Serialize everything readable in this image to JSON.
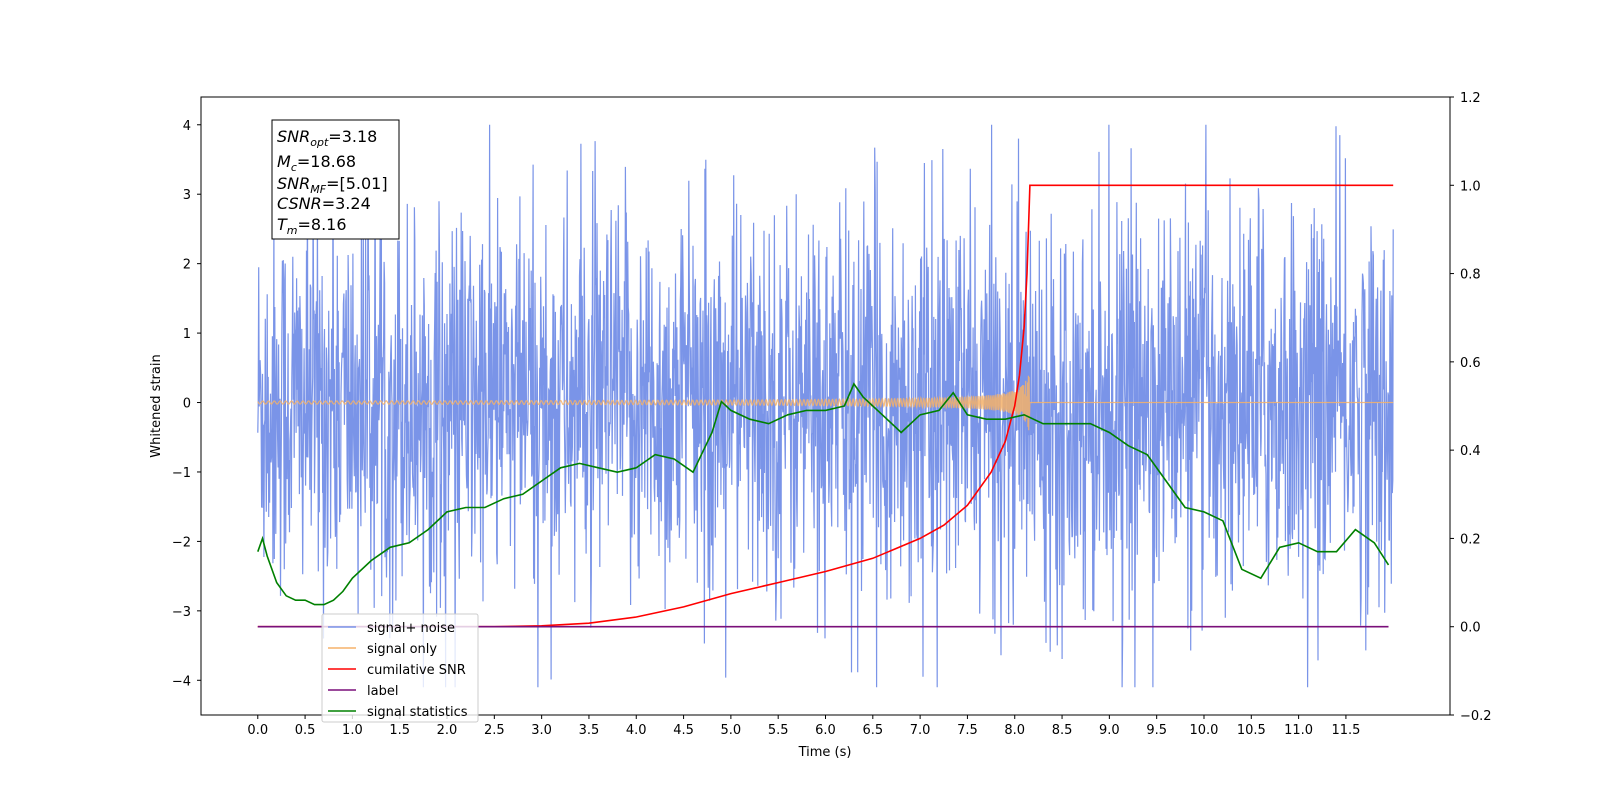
{
  "chart_data": {
    "type": "line",
    "xlabel": "Time (s)",
    "ylabel": "Whitened strain",
    "xlim": [
      -0.6,
      12.6
    ],
    "ylim": [
      -4.5,
      4.4
    ],
    "y2lim": [
      -0.2,
      1.2
    ],
    "grid": false,
    "legend_placement": "lower-left",
    "x_ticks": [
      "0.0",
      "0.5",
      "1.0",
      "1.5",
      "2.0",
      "2.5",
      "3.0",
      "3.5",
      "4.0",
      "4.5",
      "5.0",
      "5.5",
      "6.0",
      "6.5",
      "7.0",
      "7.5",
      "8.0",
      "8.5",
      "9.0",
      "9.5",
      "10.0",
      "10.5",
      "11.0",
      "11.5"
    ],
    "y_ticks": [
      "4",
      "3",
      "2",
      "1",
      "0",
      "−1",
      "−2",
      "−3",
      "−4"
    ],
    "y2_ticks": [
      "1.2",
      "1.0",
      "0.8",
      "0.6",
      "0.4",
      "0.2",
      "0.0",
      "−0.2"
    ],
    "annotation": {
      "snr_opt": "=3.18",
      "mc": "=18.68",
      "snr_mf": "=[5.01]",
      "csnr": "=3.24",
      "tm": "=8.16"
    },
    "series": [
      {
        "name": "signal+ noise",
        "color": "#7a94e8",
        "axis": "left",
        "kind": "noise",
        "x_range": [
          0.0,
          12.0
        ],
        "amplitude": 1.4
      },
      {
        "name": "signal only",
        "color": "#f5b26a",
        "axis": "left",
        "kind": "chirp",
        "merger_time": 8.16,
        "peak_amplitude": 0.6
      },
      {
        "name": "cumilative SNR",
        "color": "#ff0000",
        "axis": "right",
        "x": [
          0,
          2.5,
          3.0,
          3.5,
          4.0,
          4.5,
          5.0,
          5.5,
          6.0,
          6.5,
          7.0,
          7.25,
          7.5,
          7.75,
          7.9,
          8.0,
          8.05,
          8.1,
          8.13,
          8.16,
          12.0
        ],
        "y": [
          0,
          0,
          0.002,
          0.008,
          0.022,
          0.045,
          0.075,
          0.1,
          0.125,
          0.155,
          0.2,
          0.23,
          0.275,
          0.35,
          0.42,
          0.5,
          0.57,
          0.68,
          0.8,
          1.0,
          1.0
        ]
      },
      {
        "name": "label",
        "color": "#7a0f7a",
        "axis": "right",
        "x": [
          0,
          11.95
        ],
        "y": [
          0,
          0
        ]
      },
      {
        "name": "signal statistics",
        "color": "#008000",
        "axis": "right",
        "x": [
          0.0,
          0.05,
          0.1,
          0.2,
          0.3,
          0.4,
          0.5,
          0.6,
          0.7,
          0.8,
          0.9,
          1.0,
          1.2,
          1.4,
          1.6,
          1.8,
          2.0,
          2.2,
          2.4,
          2.6,
          2.8,
          3.0,
          3.2,
          3.4,
          3.6,
          3.8,
          4.0,
          4.2,
          4.4,
          4.6,
          4.8,
          4.9,
          5.0,
          5.2,
          5.4,
          5.6,
          5.8,
          6.0,
          6.2,
          6.3,
          6.4,
          6.6,
          6.8,
          7.0,
          7.2,
          7.35,
          7.5,
          7.7,
          7.9,
          8.1,
          8.3,
          8.5,
          8.8,
          9.0,
          9.2,
          9.4,
          9.6,
          9.8,
          10.0,
          10.2,
          10.4,
          10.6,
          10.8,
          11.0,
          11.2,
          11.4,
          11.6,
          11.8,
          11.95
        ],
        "y": [
          0.17,
          0.2,
          0.16,
          0.1,
          0.07,
          0.06,
          0.06,
          0.05,
          0.05,
          0.06,
          0.08,
          0.11,
          0.15,
          0.18,
          0.19,
          0.22,
          0.26,
          0.27,
          0.27,
          0.29,
          0.3,
          0.33,
          0.36,
          0.37,
          0.36,
          0.35,
          0.36,
          0.39,
          0.38,
          0.35,
          0.44,
          0.51,
          0.49,
          0.47,
          0.46,
          0.48,
          0.49,
          0.49,
          0.5,
          0.55,
          0.52,
          0.48,
          0.44,
          0.48,
          0.49,
          0.53,
          0.48,
          0.47,
          0.47,
          0.48,
          0.46,
          0.46,
          0.46,
          0.44,
          0.41,
          0.39,
          0.33,
          0.27,
          0.26,
          0.24,
          0.13,
          0.11,
          0.18,
          0.19,
          0.17,
          0.17,
          0.22,
          0.19,
          0.14
        ]
      }
    ]
  }
}
